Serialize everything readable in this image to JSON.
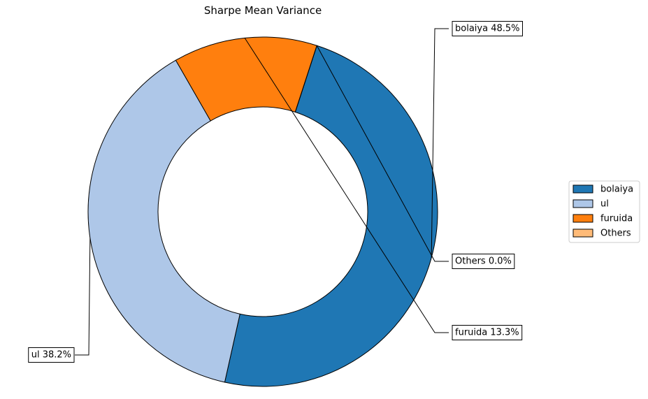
{
  "chart_data": {
    "type": "pie",
    "variant": "donut",
    "title": "Sharpe Mean Variance",
    "slices": [
      {
        "label": "bolaiya",
        "value": 48.5,
        "color": "#1f77b4",
        "data_label": "bolaiya 48.5%"
      },
      {
        "label": "ul",
        "value": 38.2,
        "color": "#aec7e8",
        "data_label": "ul 38.2%"
      },
      {
        "label": "furuida",
        "value": 13.3,
        "color": "#ff7f0e",
        "data_label": "furuida 13.3%"
      },
      {
        "label": "Others",
        "value": 0.0,
        "color": "#ffbb78",
        "data_label": "Others 0.0%"
      }
    ],
    "legend": {
      "placement": "right",
      "entries": [
        "bolaiya",
        "ul",
        "furuida",
        "Others"
      ]
    }
  }
}
